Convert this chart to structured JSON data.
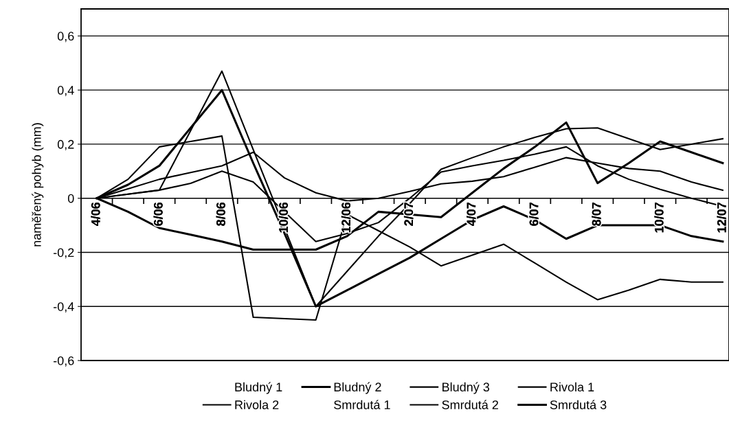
{
  "chart_data": {
    "type": "line",
    "ylabel": "naměřený pohyb (mm)",
    "categories": [
      "4/06",
      null,
      "6/06",
      null,
      "8/06",
      null,
      "10/06",
      null,
      "12/06",
      null,
      "2/07",
      null,
      "4/07",
      null,
      "6/07",
      null,
      "8/07",
      null,
      "10/07",
      null,
      "12/07"
    ],
    "series": [
      {
        "name": "Bludný 1",
        "values": [
          null,
          null,
          null,
          null,
          null,
          null,
          null,
          null,
          null,
          null,
          null,
          null,
          null,
          null,
          null,
          null,
          null,
          null,
          null,
          null,
          null
        ]
      },
      {
        "name": "Bludný 2",
        "color": "#000000",
        "values": [
          0,
          0.05,
          0.12,
          0.26,
          0.4,
          0.13,
          -0.13,
          -0.4,
          -0.34,
          -0.28,
          -0.22,
          -0.15,
          -0.08,
          -0.03,
          -0.08,
          -0.15,
          -0.1,
          -0.1,
          -0.1,
          -0.14,
          -0.16
        ]
      },
      {
        "name": "Bludný 3",
        "color": "#000000",
        "values": [
          0,
          0.015,
          0.03,
          0.25,
          0.47,
          0.18,
          -0.11,
          -0.4,
          -0.27,
          -0.14,
          -0.02,
          0.107,
          0.15,
          0.19,
          0.225,
          0.257,
          0.26,
          0.22,
          0.18,
          0.2,
          0.22
        ]
      },
      {
        "name": "Rivola 1",
        "color": "#000000",
        "values": [
          0,
          0.07,
          0.19,
          0.21,
          0.23,
          -0.44,
          -0.445,
          -0.45,
          -0.06,
          -0.12,
          -0.18,
          -0.25,
          -0.21,
          -0.17,
          -0.24,
          -0.31,
          -0.375,
          -0.34,
          -0.3,
          -0.31,
          -0.31
        ]
      },
      {
        "name": "Rivola 2",
        "color": "#000000",
        "values": [
          0,
          0.035,
          0.07,
          0.095,
          0.12,
          0.17,
          0.075,
          0.02,
          -0.01,
          0.0,
          0.025,
          0.053,
          0.063,
          0.08,
          0.115,
          0.15,
          0.13,
          0.11,
          0.1,
          0.06,
          0.03
        ]
      },
      {
        "name": "Smrdutá 1",
        "values": [
          null,
          null,
          null,
          null,
          null,
          null,
          null,
          null,
          null,
          null,
          null,
          null,
          null,
          null,
          null,
          null,
          null,
          null,
          null,
          null,
          null
        ]
      },
      {
        "name": "Smrdutá 2",
        "color": "#000000",
        "values": [
          0,
          0.015,
          0.03,
          0.055,
          0.1,
          0.06,
          -0.05,
          -0.16,
          -0.13,
          -0.09,
          0.0,
          0.097,
          0.12,
          0.14,
          0.163,
          0.19,
          0.12,
          0.07,
          0.033,
          0.0,
          -0.03
        ]
      },
      {
        "name": "Smrdutá 3",
        "color": "#000000",
        "values": [
          0,
          -0.05,
          -0.11,
          -0.135,
          -0.16,
          -0.19,
          -0.19,
          -0.19,
          -0.14,
          -0.05,
          -0.06,
          -0.07,
          0.02,
          0.11,
          0.19,
          0.28,
          0.056,
          0.13,
          0.21,
          0.17,
          0.13
        ]
      }
    ],
    "ylim": [
      -0.6,
      0.7
    ],
    "yticks": [
      {
        "value": -0.6,
        "label": "-0,6"
      },
      {
        "value": -0.4,
        "label": "-0,4"
      },
      {
        "value": -0.2,
        "label": "-0,2"
      },
      0,
      {
        "value": 0.2,
        "label": "0,2"
      },
      {
        "value": 0.4,
        "label": "0,4"
      },
      {
        "value": 0.6,
        "label": "0,6"
      }
    ],
    "grid": "y",
    "legend": "bottom",
    "marker": "none",
    "line_style": "solid"
  }
}
